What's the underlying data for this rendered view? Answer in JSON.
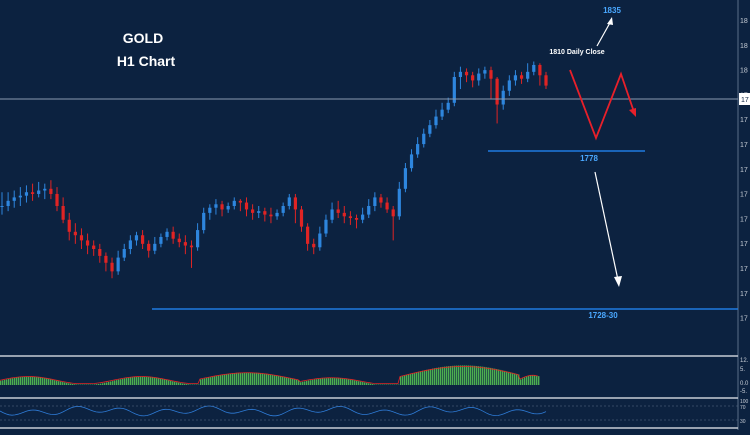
{
  "colors": {
    "background": "#0c2240",
    "bull": "#2e86de",
    "bear": "#e02424",
    "annotation_red": "#e8202a",
    "level_line": "#1f7ae0",
    "price_line": "#8a9ab0",
    "hist": "#4caf50",
    "signal": "#e02424",
    "osc": "#2e7bd6",
    "text": "#ffffff",
    "label_blue": "#4aa8ff"
  },
  "header": {
    "symbol": "GOLD",
    "timeframe": "H1 Chart"
  },
  "annotations": {
    "target_high": "1835",
    "daily_close": "1810 Daily Close",
    "support_1": "1778",
    "support_2": "1728-30"
  },
  "axis": {
    "current_price_label": "17",
    "tick_labels": [
      "18",
      "18",
      "18",
      "17",
      "17",
      "17",
      "17",
      "17",
      "17",
      "17",
      "17",
      "17",
      "17"
    ]
  },
  "indicator_axis": {
    "macd_ticks": [
      "12.",
      "5.",
      "0.0",
      "-5."
    ],
    "osc_ticks": [
      "100",
      "70",
      "30"
    ]
  },
  "chart_data": {
    "type": "candlestick",
    "title": "GOLD H1 Chart",
    "price_levels": [
      {
        "label": "1835",
        "role": "upside target"
      },
      {
        "label": "1810 Daily Close",
        "role": "pivot"
      },
      {
        "label": "1778",
        "role": "support"
      },
      {
        "label": "1728-30",
        "role": "support"
      }
    ],
    "scenario_path": [
      {
        "step": 0,
        "direction": "start"
      },
      {
        "step": 1,
        "direction": "down"
      },
      {
        "step": 2,
        "direction": "up"
      },
      {
        "step": 3,
        "direction": "down"
      }
    ],
    "candles": [
      [
        50,
        50,
        45,
        58
      ],
      [
        50,
        53,
        47,
        58
      ],
      [
        53,
        55,
        49,
        59
      ],
      [
        55,
        56,
        50,
        61
      ],
      [
        56,
        58,
        52,
        62
      ],
      [
        58,
        57,
        53,
        63
      ],
      [
        57,
        59,
        55,
        64
      ],
      [
        59,
        60,
        54,
        63
      ],
      [
        60,
        57,
        54,
        65
      ],
      [
        57,
        50,
        47,
        61
      ],
      [
        50,
        42,
        40,
        55
      ],
      [
        42,
        35,
        30,
        46
      ],
      [
        35,
        33,
        28,
        40
      ],
      [
        33,
        30,
        25,
        37
      ],
      [
        30,
        27,
        22,
        34
      ],
      [
        27,
        25,
        21,
        30
      ],
      [
        25,
        21,
        17,
        28
      ],
      [
        21,
        17,
        12,
        23
      ],
      [
        17,
        12,
        8,
        20
      ],
      [
        12,
        20,
        10,
        24
      ],
      [
        20,
        25,
        18,
        28
      ],
      [
        25,
        30,
        22,
        33
      ],
      [
        30,
        33,
        27,
        35
      ],
      [
        33,
        28,
        25,
        36
      ],
      [
        28,
        24,
        20,
        30
      ],
      [
        24,
        28,
        22,
        32
      ],
      [
        28,
        32,
        26,
        34
      ],
      [
        32,
        35,
        30,
        37
      ],
      [
        35,
        31,
        28,
        38
      ],
      [
        31,
        29,
        26,
        34
      ],
      [
        29,
        27,
        22,
        33
      ],
      [
        27,
        26,
        14,
        30
      ],
      [
        26,
        36,
        24,
        40
      ],
      [
        36,
        46,
        34,
        49
      ],
      [
        46,
        49,
        42,
        51
      ],
      [
        49,
        51,
        45,
        54
      ],
      [
        51,
        48,
        44,
        53
      ],
      [
        48,
        50,
        46,
        52
      ],
      [
        50,
        53,
        48,
        55
      ],
      [
        53,
        52,
        47,
        54
      ],
      [
        52,
        48,
        44,
        55
      ],
      [
        48,
        46,
        42,
        51
      ],
      [
        46,
        47,
        43,
        50
      ],
      [
        47,
        45,
        41,
        49
      ],
      [
        45,
        44,
        40,
        49
      ],
      [
        44,
        46,
        42,
        48
      ],
      [
        46,
        50,
        44,
        52
      ],
      [
        50,
        55,
        48,
        57
      ],
      [
        55,
        48,
        40,
        57
      ],
      [
        48,
        38,
        35,
        50
      ],
      [
        38,
        28,
        24,
        40
      ],
      [
        28,
        26,
        22,
        31
      ],
      [
        26,
        34,
        24,
        38
      ],
      [
        34,
        42,
        32,
        45
      ],
      [
        42,
        48,
        40,
        52
      ],
      [
        48,
        46,
        43,
        53
      ],
      [
        46,
        44,
        40,
        50
      ],
      [
        44,
        43,
        39,
        47
      ],
      [
        43,
        42,
        37,
        45
      ],
      [
        42,
        45,
        40,
        49
      ],
      [
        45,
        50,
        43,
        54
      ],
      [
        50,
        55,
        47,
        58
      ],
      [
        55,
        52,
        49,
        57
      ],
      [
        52,
        48,
        46,
        55
      ],
      [
        48,
        44,
        30,
        50
      ],
      [
        44,
        60,
        42,
        64
      ],
      [
        60,
        72,
        58,
        75
      ],
      [
        72,
        80,
        70,
        83
      ],
      [
        80,
        86,
        78,
        90
      ],
      [
        86,
        92,
        84,
        95
      ],
      [
        92,
        97,
        90,
        100
      ],
      [
        97,
        102,
        95,
        106
      ],
      [
        102,
        106,
        100,
        110
      ],
      [
        106,
        110,
        104,
        113
      ],
      [
        110,
        125,
        108,
        128
      ],
      [
        125,
        128,
        118,
        131
      ],
      [
        128,
        126,
        122,
        130
      ],
      [
        126,
        123,
        119,
        128
      ],
      [
        123,
        127,
        120,
        130
      ],
      [
        127,
        129,
        124,
        131
      ],
      [
        129,
        124,
        112,
        131
      ],
      [
        124,
        109,
        98,
        125
      ],
      [
        109,
        117,
        106,
        120
      ],
      [
        117,
        123,
        114,
        126
      ],
      [
        123,
        126,
        120,
        129
      ],
      [
        126,
        124,
        121,
        128
      ],
      [
        124,
        128,
        122,
        133
      ],
      [
        128,
        132,
        126,
        134
      ],
      [
        132,
        126,
        120,
        133
      ],
      [
        126,
        120,
        118,
        128
      ]
    ]
  }
}
